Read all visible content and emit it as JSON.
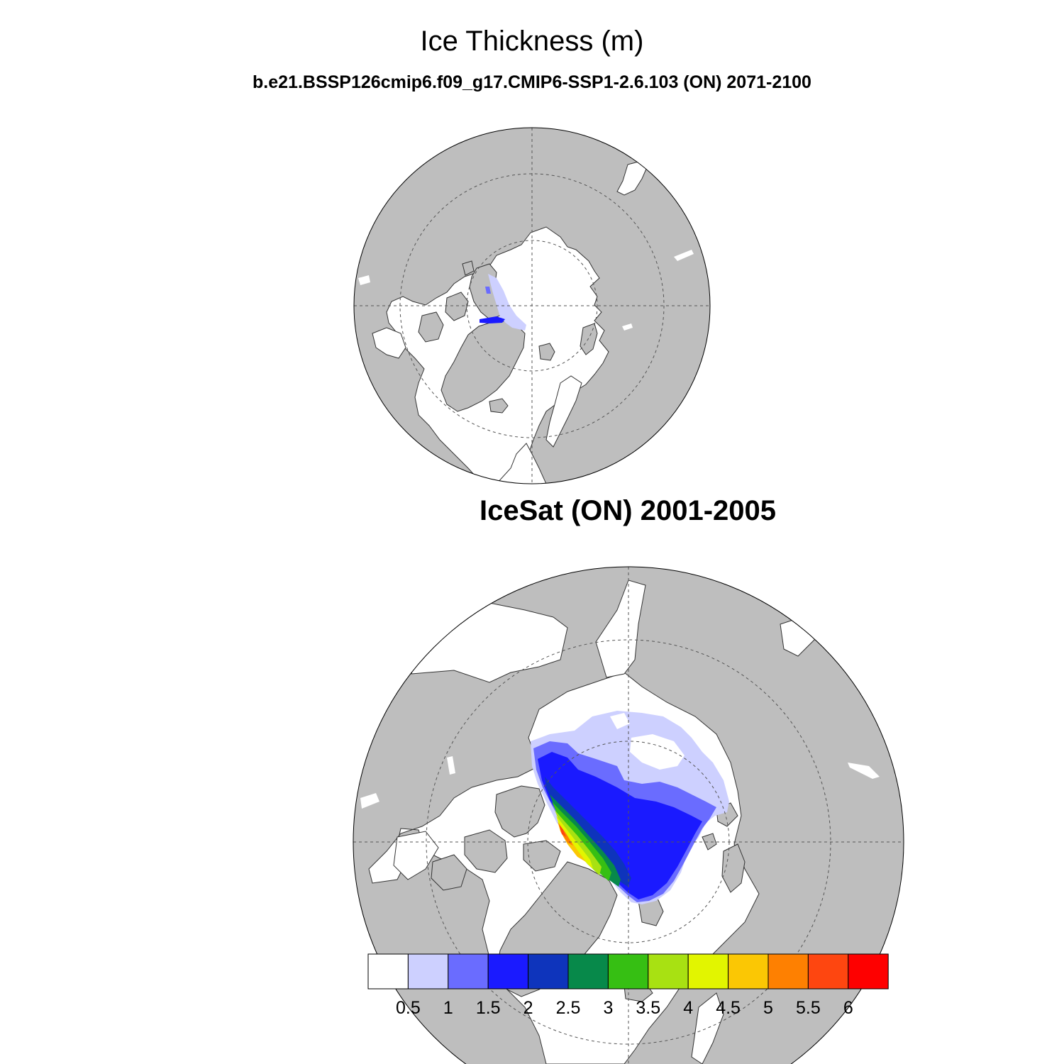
{
  "header": {
    "title": "Ice Thickness (m)",
    "subtitle": "b.e21.BSSP126cmip6.f09_g17.CMIP6-SSP1-2.6.103 (ON) 2071-2100"
  },
  "panels": [
    {
      "title": "",
      "region": "Arctic, north polar stereographic",
      "ice_extent": "Nares Strait / Ellesmere margin only"
    },
    {
      "title": "IceSat (ON) 2001-2005",
      "region": "Arctic, north polar stereographic",
      "ice_extent": "central Arctic basin"
    }
  ],
  "colorbar": {
    "units": "m",
    "levels": [
      "0.5",
      "1",
      "1.5",
      "2",
      "2.5",
      "3",
      "3.5",
      "4",
      "4.5",
      "5",
      "5.5",
      "6"
    ],
    "colors": [
      "#ffffff",
      "#cdd0ff",
      "#6a6cff",
      "#1a1aff",
      "#0e34bc",
      "#07894a",
      "#36bf13",
      "#a8e112",
      "#e2f500",
      "#fbc704",
      "#fe8001",
      "#fe4610",
      "#fe0000"
    ]
  },
  "colors": {
    "land": "#bebebe",
    "ocean": "#ffffff",
    "grid": "#555555"
  }
}
